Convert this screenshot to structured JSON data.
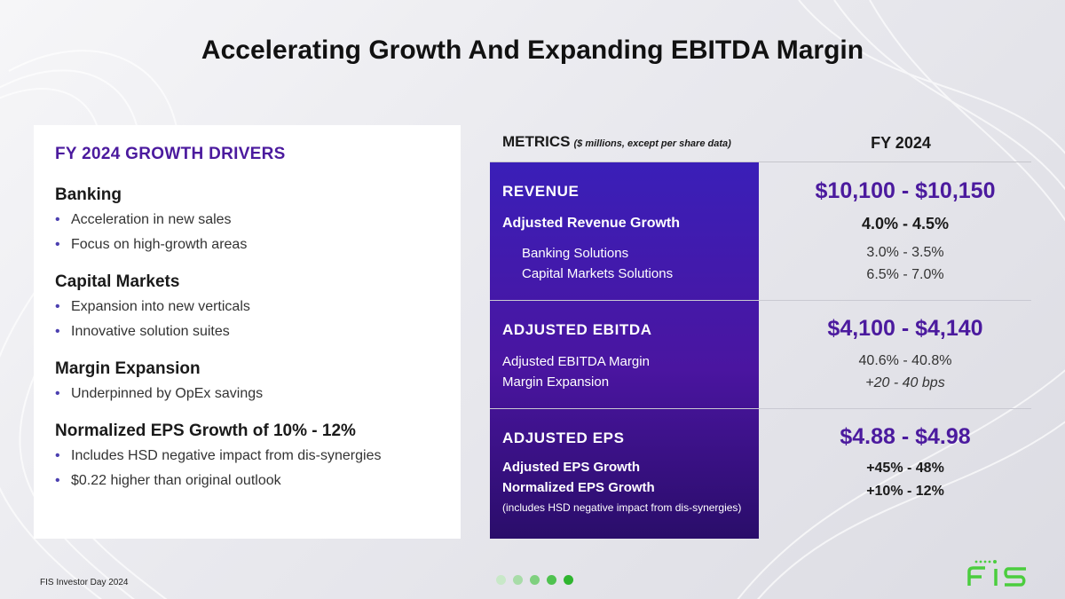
{
  "title": "Accelerating Growth And Expanding EBITDA Margin",
  "left": {
    "heading": "FY 2024 GROWTH DRIVERS",
    "groups": [
      {
        "title": "Banking",
        "items": [
          "Acceleration in new sales",
          "Focus on high-growth areas"
        ]
      },
      {
        "title": "Capital Markets",
        "items": [
          "Expansion into new verticals",
          "Innovative solution suites"
        ]
      },
      {
        "title": "Margin Expansion",
        "items": [
          "Underpinned by OpEx savings"
        ]
      },
      {
        "title": "Normalized EPS Growth of 10% - 12%",
        "items": [
          "Includes HSD negative impact from dis-synergies",
          "$0.22 higher than original outlook"
        ]
      }
    ]
  },
  "metrics": {
    "header": "METRICS",
    "header_sub": "($ millions, except per share data)",
    "fy_header": "FY 2024",
    "revenue": {
      "label": "REVENUE",
      "value": "$10,100 - $10,150",
      "growth_label": "Adjusted Revenue Growth",
      "growth_value": "4.0% - 4.5%",
      "banking_label": "Banking Solutions",
      "banking_value": "3.0% - 3.5%",
      "capmkts_label": "Capital Markets Solutions",
      "capmkts_value": "6.5% - 7.0%"
    },
    "ebitda": {
      "label": "ADJUSTED EBITDA",
      "value": "$4,100 - $4,140",
      "margin_label": "Adjusted EBITDA Margin",
      "margin_value": "40.6% - 40.8%",
      "expansion_label": "Margin Expansion",
      "expansion_value": "+20 - 40 bps"
    },
    "eps": {
      "label": "ADJUSTED EPS",
      "value": "$4.88 - $4.98",
      "growth_label": "Adjusted EPS Growth",
      "growth_value": "+45% - 48%",
      "norm_label": "Normalized EPS Growth",
      "norm_value": "+10% - 12%",
      "note": "(includes HSD negative impact from dis-synergies)"
    }
  },
  "footer": {
    "text": "FIS Investor Day 2024",
    "logo": "fis-logo",
    "dot_colors": [
      "#c8e8c8",
      "#a8dca8",
      "#7fd07f",
      "#4fc24f",
      "#2fb52f"
    ]
  },
  "colors": {
    "accent_purple": "#4b1a9e",
    "panel_purple": "#3a1fb8",
    "brand_green": "#4bcd3e"
  }
}
